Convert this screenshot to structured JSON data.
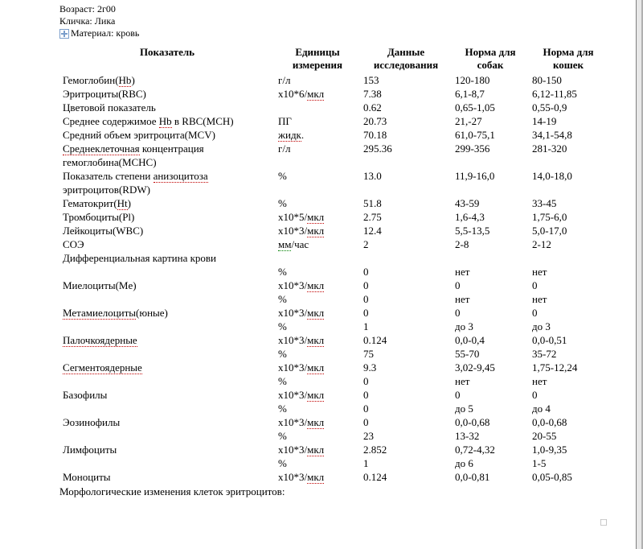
{
  "meta": {
    "age_label": "Возраст: 2г00",
    "name_label": "Кличка: Лика",
    "material_label": "Материал: кровь"
  },
  "headers": {
    "indicator": "Показатель",
    "unit": [
      "Единицы",
      "измерения"
    ],
    "data": [
      "Данные",
      "исследования"
    ],
    "dog": [
      "Норма для",
      "собак"
    ],
    "cat": [
      "Норма для",
      "кошек"
    ]
  },
  "rows": [
    {
      "ind": "Гемоглобин(<span class='spell'>Hb</span>)",
      "unit": "г/л",
      "data": "153",
      "dog": "120-180",
      "cat": "80-150"
    },
    {
      "ind": "Эритроциты(RBC)",
      "unit": "х10*6/<span class='spell'>мкл</span>",
      "data": "7.38",
      "dog": "6,1-8,7",
      "cat": "6,12-11,85"
    },
    {
      "ind": "Цветовой показатель",
      "unit": "",
      "data": "0.62",
      "dog": "0,65-1,05",
      "cat": "0,55-0,9"
    },
    {
      "ind": "Среднее содержимое <span class='spell'>Hb</span> в RBC(MCH)",
      "unit": "ПГ",
      "data": "20.73",
      "dog": "21,-27",
      "cat": "14-19"
    },
    {
      "ind": "Средний объем эритроцита(MCV)",
      "unit": "<span class='spell'>жидк</span>.",
      "data": "70.18",
      "dog": "61,0-75,1",
      "cat": "34,1-54,8"
    },
    {
      "ind": "<span class='spell'>Среднеклеточная</span> концентрация гемоглобина(MCHC)",
      "unit": "г/л",
      "data": "295.36",
      "dog": "299-356",
      "cat": "281-320"
    },
    {
      "ind": "Показатель степени <span class='spell'>анизоцитоза</span> эритроцитов(RDW)",
      "unit": "%",
      "data": "13.0",
      "dog": "11,9-16,0",
      "cat": "14,0-18,0"
    },
    {
      "ind": "Гематокрит(<span class='spell'>Ht</span>)",
      "unit": "%",
      "data": "51.8",
      "dog": "43-59",
      "cat": "33-45"
    },
    {
      "ind": "Тромбоциты(Pl)",
      "unit": "х10*5/<span class='spell'>мкл</span>",
      "data": "2.75",
      "dog": "1,6-4,3",
      "cat": "1,75-6,0"
    },
    {
      "ind": "Лейкоциты(WBC)",
      "unit": "х10*3/<span class='spell'>мкл</span>",
      "data": "12.4",
      "dog": "5,5-13,5",
      "cat": "5,0-17,0"
    },
    {
      "ind": "СОЭ",
      "unit": "<span class='grammar'>мм</span>/час",
      "data": "2",
      "dog": "2-8",
      "cat": "2-12"
    },
    {
      "ind": "Дифференциальная картина крови",
      "unit": "",
      "data": "",
      "dog": "",
      "cat": ""
    },
    {
      "ind": "",
      "unit": "%",
      "data": "0",
      "dog": "нет",
      "cat": "нет"
    },
    {
      "ind": "Миелоциты(Me)",
      "unit": "х10*3/<span class='spell'>мкл</span>",
      "data": "0",
      "dog": "0",
      "cat": "0"
    },
    {
      "ind": "",
      "unit": "%",
      "data": "0",
      "dog": "нет",
      "cat": "нет"
    },
    {
      "ind": "<span class='spell'>Метамиелоциты</span>(юные)",
      "unit": "х10*3/<span class='spell'>мкл</span>",
      "data": "0",
      "dog": "0",
      "cat": "0"
    },
    {
      "ind": "",
      "unit": "%",
      "data": "1",
      "dog": "до 3",
      "cat": "до 3"
    },
    {
      "ind": "<span class='spell'>Палочкоядерные</span>",
      "unit": "х10*3/<span class='spell'>мкл</span>",
      "data": "0.124",
      "dog": "0,0-0,4",
      "cat": "0,0-0,51"
    },
    {
      "ind": "",
      "unit": "%",
      "data": "75",
      "dog": "55-70",
      "cat": "35-72"
    },
    {
      "ind": "<span class='spell'>Сегментоядерные</span>",
      "unit": "х10*3/<span class='spell'>мкл</span>",
      "data": "9.3",
      "dog": "3,02-9,45",
      "cat": "1,75-12,24"
    },
    {
      "ind": "",
      "unit": "%",
      "data": "0",
      "dog": "нет",
      "cat": "нет"
    },
    {
      "ind": "Базофилы",
      "unit": "х10*3/<span class='spell'>мкл</span>",
      "data": "0",
      "dog": "0",
      "cat": "0"
    },
    {
      "ind": "",
      "unit": "%",
      "data": "0",
      "dog": "до 5",
      "cat": "до 4"
    },
    {
      "ind": "Эозинофилы",
      "unit": "х10*3/<span class='spell'>мкл</span>",
      "data": "0",
      "dog": "0,0-0,68",
      "cat": "0,0-0,68"
    },
    {
      "ind": "",
      "unit": "%",
      "data": "23",
      "dog": "13-32",
      "cat": "20-55"
    },
    {
      "ind": "Лимфоциты",
      "unit": "х10*3/<span class='spell'>мкл</span>",
      "data": "2.852",
      "dog": "0,72-4,32",
      "cat": "1,0-9,35"
    },
    {
      "ind": "",
      "unit": "%",
      "data": "1",
      "dog": "до 6",
      "cat": "1-5"
    },
    {
      "ind": "Моноциты",
      "unit": "х10*3/<span class='spell'>мкл</span>",
      "data": "0.124",
      "dog": "0,0-0,81",
      "cat": "0,05-0,85"
    }
  ],
  "footer": "Морфологические изменения клеток эритроцитов:"
}
